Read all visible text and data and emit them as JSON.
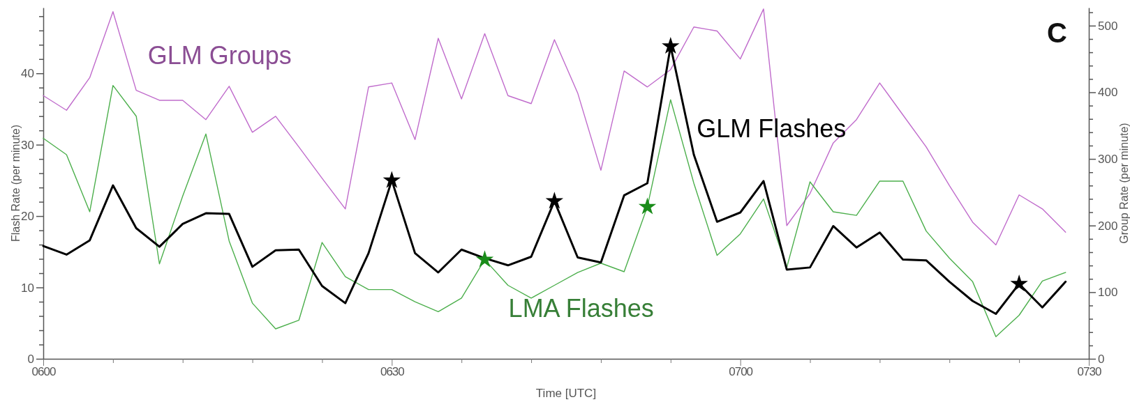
{
  "chart_data": {
    "type": "line",
    "xlabel": "Time [UTC]",
    "ylabel": "Flash Rate (per minute)",
    "y2label": "Group Rate (per minute)",
    "annotations": [
      "C"
    ],
    "categories": [
      "0600",
      null,
      null,
      null,
      null,
      null,
      null,
      null,
      null,
      null,
      null,
      null,
      null,
      null,
      null,
      "0630",
      null,
      null,
      null,
      null,
      null,
      null,
      null,
      null,
      null,
      null,
      null,
      null,
      null,
      null,
      "0700",
      null,
      null,
      null,
      null,
      null,
      null,
      null,
      null,
      null,
      null,
      null,
      null,
      null,
      null,
      "0730"
    ],
    "ylim": [
      0,
      49.2
    ],
    "yticks": [
      0,
      {
        "value": 2,
        "label": null
      },
      {
        "value": 4,
        "label": null
      },
      {
        "value": 6,
        "label": null
      },
      {
        "value": 8,
        "label": null
      },
      10,
      {
        "value": 12,
        "label": null
      },
      {
        "value": 14,
        "label": null
      },
      {
        "value": 16,
        "label": null
      },
      {
        "value": 18,
        "label": null
      },
      20,
      {
        "value": 22,
        "label": null
      },
      {
        "value": 24,
        "label": null
      },
      {
        "value": 26,
        "label": null
      },
      {
        "value": 28,
        "label": null
      },
      30,
      {
        "value": 32,
        "label": null
      },
      {
        "value": 34,
        "label": null
      },
      {
        "value": 36,
        "label": null
      },
      {
        "value": 38,
        "label": null
      },
      40,
      {
        "value": 42,
        "label": null
      },
      {
        "value": 44,
        "label": null
      },
      {
        "value": 46,
        "label": null
      },
      {
        "value": 48,
        "label": null
      }
    ],
    "y2lim": [
      0,
      527
    ],
    "y2ticks": [
      0,
      {
        "value": 20,
        "label": null
      },
      {
        "value": 40,
        "label": null
      },
      {
        "value": 60,
        "label": null
      },
      {
        "value": 80,
        "label": null
      },
      100,
      {
        "value": 120,
        "label": null
      },
      {
        "value": 140,
        "label": null
      },
      {
        "value": 160,
        "label": null
      },
      {
        "value": 180,
        "label": null
      },
      200,
      {
        "value": 220,
        "label": null
      },
      {
        "value": 240,
        "label": null
      },
      {
        "value": 260,
        "label": null
      },
      {
        "value": 280,
        "label": null
      },
      300,
      {
        "value": 320,
        "label": null
      },
      {
        "value": 340,
        "label": null
      },
      {
        "value": 360,
        "label": null
      },
      {
        "value": 380,
        "label": null
      },
      400,
      {
        "value": 420,
        "label": null
      },
      {
        "value": 440,
        "label": null
      },
      {
        "value": 460,
        "label": null
      },
      {
        "value": 480,
        "label": null
      },
      500,
      {
        "value": 520,
        "label": null
      }
    ],
    "marker": "none",
    "line_style": "solid",
    "series": [
      {
        "name": "GLM Groups",
        "color": "#c06ccc",
        "axis": "y2",
        "values": [
          395,
          373,
          422,
          521,
          403,
          388,
          388,
          359,
          409,
          340,
          364,
          318,
          271,
          225,
          408,
          414,
          329,
          481,
          390,
          488,
          395,
          383,
          479,
          399,
          283,
          432,
          408,
          434,
          498,
          492,
          450,
          525,
          200,
          248,
          324,
          359,
          414,
          366,
          318,
          260,
          205,
          171,
          246,
          225,
          190,
          null
        ]
      },
      {
        "name": "LMA Flashes",
        "color": "#4caf4c",
        "values": [
          30.9,
          28.6,
          20.6,
          38.3,
          34.0,
          13.3,
          22.8,
          31.5,
          16.5,
          7.8,
          4.2,
          5.4,
          16.3,
          11.5,
          9.7,
          9.7,
          8.0,
          6.6,
          8.5,
          13.9,
          10.3,
          8.5,
          10.3,
          12.1,
          13.4,
          12.2,
          21.3,
          36.3,
          24.6,
          14.5,
          17.5,
          22.4,
          12.8,
          24.8,
          20.6,
          20.1,
          24.9,
          24.9,
          17.9,
          14.1,
          10.8,
          3.1,
          6.1,
          10.9,
          12.1,
          null
        ]
      },
      {
        "name": "GLM Flashes",
        "color": "#000000",
        "values": [
          15.8,
          14.6,
          16.6,
          24.3,
          18.3,
          15.7,
          18.9,
          20.4,
          20.3,
          12.9,
          15.2,
          15.3,
          10.2,
          7.8,
          14.8,
          25.0,
          14.8,
          12.1,
          15.3,
          14.1,
          13.1,
          14.3,
          22.1,
          14.2,
          13.5,
          22.9,
          24.6,
          43.8,
          28.6,
          19.2,
          20.5,
          24.9,
          12.5,
          12.8,
          18.6,
          15.6,
          17.7,
          13.9,
          13.8,
          10.8,
          8.1,
          6.3,
          10.5,
          7.2,
          10.8,
          null
        ]
      },
      {
        "type": "scatter",
        "marker": "star",
        "color": "#000000",
        "values": [
          null,
          null,
          null,
          null,
          null,
          null,
          null,
          null,
          null,
          null,
          null,
          null,
          null,
          null,
          null,
          25.0,
          null,
          null,
          null,
          null,
          null,
          null,
          22.1,
          null,
          null,
          null,
          null,
          43.8,
          null,
          null,
          null,
          null,
          null,
          null,
          null,
          null,
          null,
          null,
          null,
          null,
          null,
          null,
          10.5,
          null,
          null,
          null
        ]
      },
      {
        "type": "scatter",
        "marker": "star",
        "color": "#1a8c1a",
        "values": [
          null,
          null,
          null,
          null,
          null,
          null,
          null,
          null,
          null,
          null,
          null,
          null,
          null,
          null,
          null,
          null,
          null,
          null,
          null,
          13.9,
          null,
          null,
          null,
          null,
          null,
          null,
          21.3,
          null,
          null,
          null,
          null,
          null,
          null,
          null,
          null,
          null,
          null,
          null,
          null,
          null,
          null,
          null,
          null,
          null,
          null,
          null
        ]
      }
    ]
  }
}
